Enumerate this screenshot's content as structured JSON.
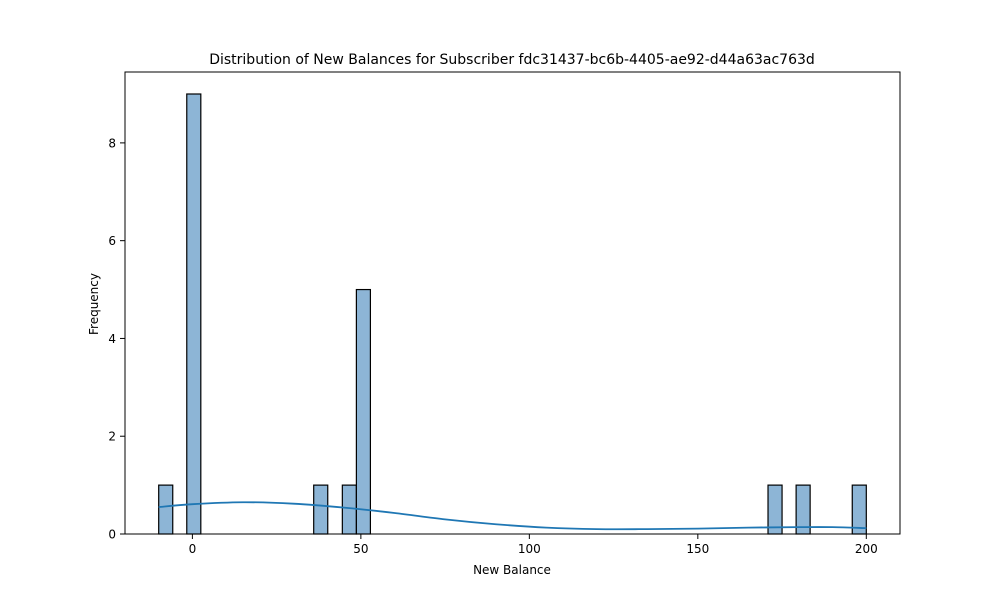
{
  "chart_data": {
    "type": "bar",
    "title": "Distribution of New Balances for Subscriber fdc31437-bc6b-4405-ae92-d44a63ac763d",
    "xlabel": "New Balance",
    "ylabel": "Frequency",
    "xlim": [
      -20,
      210
    ],
    "ylim": [
      0,
      9.45
    ],
    "x_ticks": [
      0,
      50,
      100,
      150,
      200
    ],
    "y_ticks": [
      0,
      2,
      4,
      6,
      8
    ],
    "grid": false,
    "bin_width": 4.17,
    "bins": [
      {
        "start": -10.0,
        "end": -5.83,
        "count": 1
      },
      {
        "start": -1.67,
        "end": 2.5,
        "count": 9
      },
      {
        "start": 36.0,
        "end": 40.17,
        "count": 1
      },
      {
        "start": 44.5,
        "end": 48.67,
        "count": 1
      },
      {
        "start": 48.67,
        "end": 52.83,
        "count": 5
      },
      {
        "start": 170.83,
        "end": 175.0,
        "count": 1
      },
      {
        "start": 179.17,
        "end": 183.33,
        "count": 1
      },
      {
        "start": 195.83,
        "end": 200.0,
        "count": 1
      }
    ],
    "kde": {
      "x": [
        -10,
        0,
        15,
        30,
        45,
        60,
        75,
        90,
        105,
        120,
        135,
        150,
        165,
        180,
        190,
        200
      ],
      "y": [
        0.55,
        0.61,
        0.65,
        0.62,
        0.54,
        0.43,
        0.3,
        0.2,
        0.13,
        0.1,
        0.1,
        0.11,
        0.13,
        0.14,
        0.14,
        0.12
      ]
    },
    "colors": {
      "bar_fill": "#8db5d6",
      "bar_edge": "#000000",
      "kde_line": "#1f77b4"
    }
  }
}
